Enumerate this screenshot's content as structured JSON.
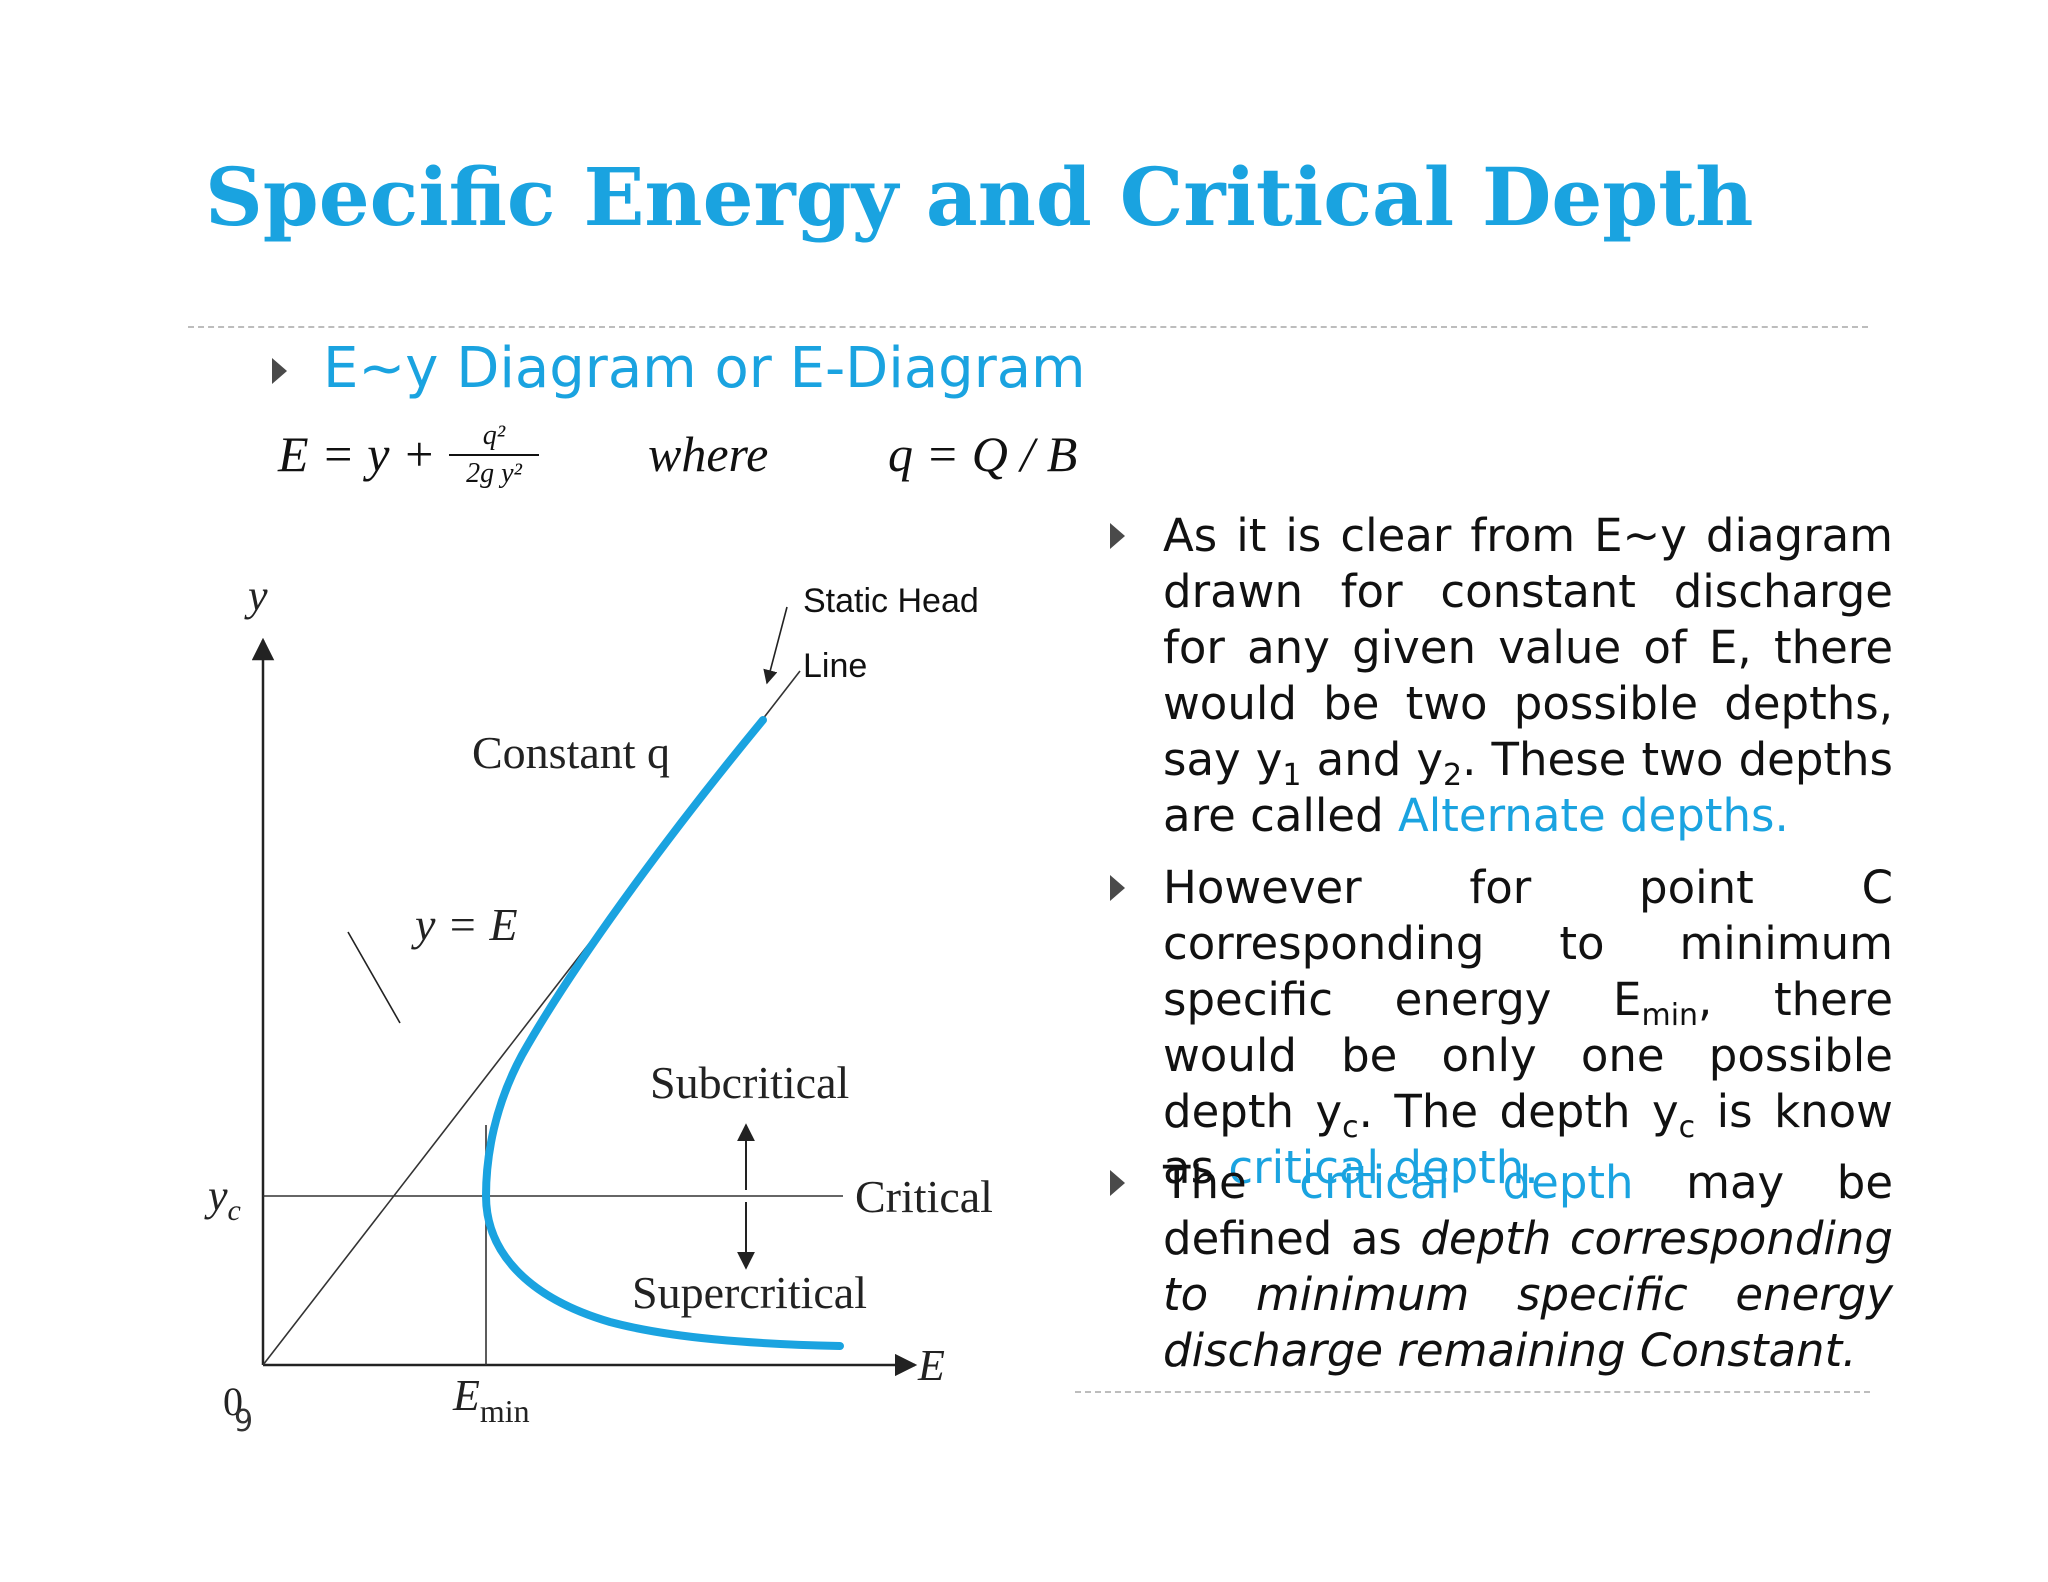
{
  "slide": {
    "title": "Specific Energy and Critical Depth",
    "subheading": "E~y Diagram or E-Diagram",
    "page_number": "9"
  },
  "equation": {
    "lhs": "E = y +",
    "numerator": "q²",
    "denominator": "2g y²",
    "where": "where",
    "definition": "q = Q / B"
  },
  "diagram": {
    "axis_y_label": "y",
    "axis_x_label": "E",
    "origin_label": "0",
    "yc_label": "y",
    "yc_sub": "c",
    "emin_label": "E",
    "emin_sub": "min",
    "static_head_line1": "Static Head",
    "static_head_line2": "Line",
    "constant_q": "Constant q",
    "y_equals_e": "y = E",
    "subcritical": "Subcritical",
    "critical": "Critical",
    "supercritical": "Supercritical",
    "curve_color": "#1aa3e0"
  },
  "bullets": {
    "b1": {
      "t1": "As it is clear from E~y diagram drawn for constant discharge for any given value of E, there would be two possible depths, say y",
      "s1": "1",
      "t2": " and y",
      "s2": "2",
      "t3": ". These two depths are called ",
      "hl": "Alternate depths."
    },
    "b2": {
      "t1": "However for point C corresponding to minimum specific energy E",
      "s1": "min",
      "t2": ", there would be only one possible depth y",
      "s2": "c",
      "t3": ". The depth y",
      "s3": "c",
      "t4": " is know as ",
      "hl": "critical depth."
    },
    "b3": {
      "t1": "The ",
      "hl": "critical depth",
      "t2": " may be defined as ",
      "it": "depth corresponding to minimum specific energy discharge remaining Constant."
    }
  },
  "colors": {
    "accent": "#1aa3e0",
    "dash": "#bdbdbd"
  }
}
